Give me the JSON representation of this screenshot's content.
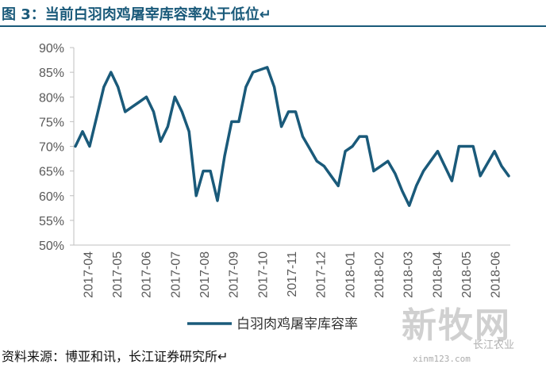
{
  "figure": {
    "title": "图 3：当前白羽肉鸡屠宰库容率处于低位↵",
    "source": "资料来源：博亚和讯，长江证券研究所↵"
  },
  "colors": {
    "line": "#1a5a7a",
    "axis": "#bfbfbf",
    "text": "#595959",
    "accent": "#1a5a7a"
  },
  "watermark": {
    "logo": "新牧网",
    "account": "长江农业",
    "url": "xinm123.com"
  },
  "chart_data": {
    "type": "line",
    "title": "",
    "xlabel": "",
    "ylabel": "",
    "ylim": [
      0.5,
      0.9
    ],
    "y_ticks": [
      "90%",
      "85%",
      "80%",
      "75%",
      "70%",
      "65%",
      "60%",
      "55%",
      "50%"
    ],
    "x_ticks": [
      "2017-04",
      "2017-05",
      "2017-06",
      "2017-07",
      "2017-08",
      "2017-09",
      "2017-10",
      "2017-11",
      "2017-12",
      "2018-01",
      "2018-02",
      "2018-03",
      "2018-04",
      "2018-05",
      "2018-06"
    ],
    "legend": "bottom-center",
    "grid": false,
    "series": [
      {
        "name": "白羽肉鸡屠宰库容率",
        "values": [
          0.7,
          0.73,
          0.7,
          0.76,
          0.82,
          0.85,
          0.82,
          0.77,
          0.78,
          0.79,
          0.8,
          0.77,
          0.71,
          0.74,
          0.8,
          0.77,
          0.73,
          0.6,
          0.65,
          0.65,
          0.59,
          0.68,
          0.75,
          0.75,
          0.82,
          0.85,
          0.855,
          0.86,
          0.82,
          0.74,
          0.77,
          0.77,
          0.72,
          0.695,
          0.67,
          0.66,
          0.64,
          0.62,
          0.69,
          0.7,
          0.72,
          0.72,
          0.65,
          0.66,
          0.67,
          0.645,
          0.61,
          0.58,
          0.62,
          0.65,
          0.67,
          0.69,
          0.66,
          0.63,
          0.7,
          0.7,
          0.7,
          0.64,
          0.665,
          0.69,
          0.66,
          0.64
        ]
      }
    ]
  }
}
